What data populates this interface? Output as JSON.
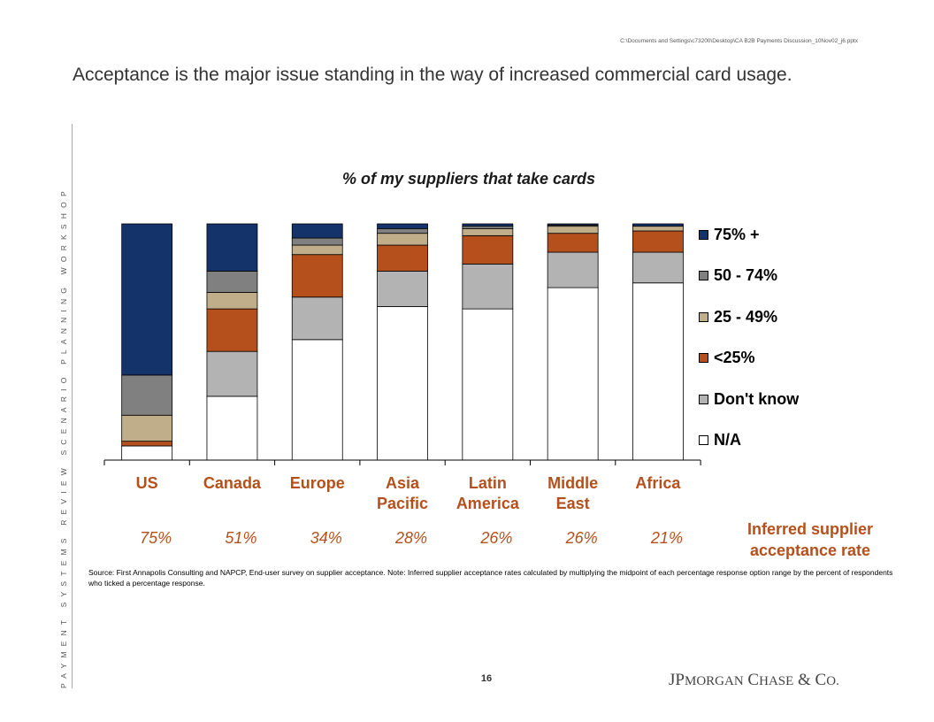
{
  "header": {
    "file_path": "C:\\Documents and Settings\\c73200\\Desktop\\CA B2B Payments Discussion_10Nov02_j6.pptx",
    "headline": "Acceptance is the major issue standing in the way of increased commercial card usage."
  },
  "sidebar": {
    "text": "PAYMENT SYSTEMS REVIEW SCENARIO PLANNING WORKSHOP"
  },
  "chart_data": {
    "type": "bar",
    "stacked": true,
    "percent_stacked": true,
    "title": "% of my suppliers that take cards",
    "categories": [
      "US",
      "Canada",
      "Europe",
      "Asia Pacific",
      "Latin America",
      "Middle East",
      "Africa"
    ],
    "ylim": [
      0,
      100
    ],
    "grid": false,
    "legend_position": "right",
    "series": [
      {
        "name": "N/A",
        "color": "#ffffff",
        "values": [
          6,
          27,
          51,
          65,
          64,
          73,
          75
        ]
      },
      {
        "name": "Don't know",
        "color": "#b3b3b3",
        "values": [
          0,
          19,
          18,
          15,
          19,
          15,
          13
        ]
      },
      {
        "name": "<25%",
        "color": "#b5501c",
        "values": [
          2,
          18,
          18,
          11,
          12,
          8,
          9
        ]
      },
      {
        "name": "25 - 49%",
        "color": "#c0ad8a",
        "values": [
          11,
          7,
          4,
          5,
          3,
          3,
          2
        ]
      },
      {
        "name": "50 - 74%",
        "color": "#808080",
        "values": [
          17,
          9,
          3,
          2,
          1,
          0.5,
          0
        ]
      },
      {
        "name": "75% +",
        "color": "#15336b",
        "values": [
          64,
          20,
          6,
          2,
          1,
          0.5,
          1
        ]
      }
    ],
    "inferred_rates": [
      "75%",
      "51%",
      "34%",
      "28%",
      "26%",
      "26%",
      "21%"
    ],
    "inferred_rate_label": "Inferred supplier acceptance rate"
  },
  "source_note": "Source:  First Annapolis Consulting and NAPCP, End-user survey on supplier acceptance.  Note:  Inferred supplier acceptance rates calculated by multiplying the midpoint of each percentage response option range by the percent of respondents who ticked a percentage response.",
  "footer": {
    "page_number": "16",
    "logo_text": "JPMorgan Chase & Co."
  }
}
